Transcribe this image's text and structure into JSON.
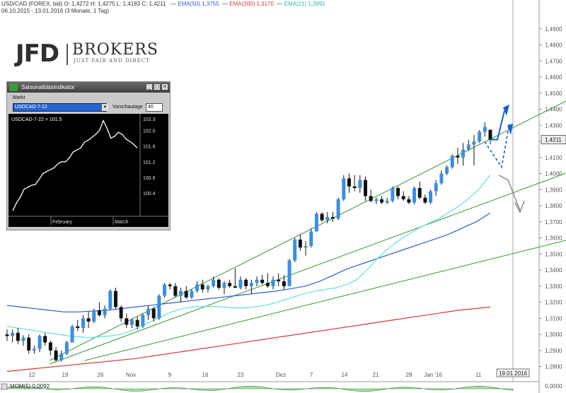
{
  "header": {
    "title_line": "USD/CAD (FOREX, bid)  O: 1,4272  H: 1,4275  L: 1,4183  C: 1,4211",
    "ema50": "EMA(50)  1,3755",
    "ema200": "EMA(200)  1,3170",
    "ema21": "EMA(21)  1,3992",
    "range_line": "06.10.2015 - 13.01.2016 (3 Monate, 1 Tag)"
  },
  "logo": {
    "jfd": "JFD",
    "brokers": "BROKERS",
    "tagline": "JUST FAIR AND DIRECT"
  },
  "colors": {
    "up_candle": "#3a8ee6",
    "down_candle": "#111111",
    "ema50": "#2a5bd7",
    "ema200": "#d43a3a",
    "ema21": "#5fe0e0",
    "trend": "#2e9a2e",
    "arrow": "#1560d8"
  },
  "current_price": "1,4211",
  "date_marker": "19.01.2016",
  "momentum": {
    "label": "MOM(5)  0,0092",
    "value_label": "0,0000"
  },
  "chart_data": {
    "type": "candlestick",
    "ylim": [
      1.275,
      1.5
    ],
    "y_ticks": [
      "1,2800",
      "1,2900",
      "1,3000",
      "1,3100",
      "1,3200",
      "1,3300",
      "1,3400",
      "1,3500",
      "1,3600",
      "1,3700",
      "1,3800",
      "1,3900",
      "1,4000",
      "1,4100",
      "1,4200",
      "1,4300",
      "1,4400",
      "1,4500",
      "1,4600",
      "1,4700",
      "1,4800",
      "1,4900"
    ],
    "x_tick_labels": [
      "12",
      "19",
      "26",
      "Nov",
      "9",
      "16",
      "23",
      "Dez",
      "7",
      "14",
      "21",
      "28",
      "Jan '16",
      "11"
    ],
    "candles": [
      [
        1.3,
        1.303,
        1.296,
        1.299
      ],
      [
        1.299,
        1.303,
        1.295,
        1.301
      ],
      [
        1.301,
        1.304,
        1.294,
        1.296
      ],
      [
        1.296,
        1.2995,
        1.293,
        1.298
      ],
      [
        1.298,
        1.3,
        1.288,
        1.29
      ],
      [
        1.29,
        1.293,
        1.288,
        1.291
      ],
      [
        1.291,
        1.3,
        1.289,
        1.299
      ],
      [
        1.299,
        1.301,
        1.293,
        1.295
      ],
      [
        1.295,
        1.296,
        1.287,
        1.29
      ],
      [
        1.29,
        1.292,
        1.283,
        1.284
      ],
      [
        1.284,
        1.29,
        1.283,
        1.288
      ],
      [
        1.288,
        1.296,
        1.287,
        1.295
      ],
      [
        1.295,
        1.306,
        1.295,
        1.305
      ],
      [
        1.305,
        1.309,
        1.302,
        1.304
      ],
      [
        1.304,
        1.312,
        1.301,
        1.31
      ],
      [
        1.31,
        1.314,
        1.304,
        1.308
      ],
      [
        1.308,
        1.316,
        1.307,
        1.315
      ],
      [
        1.315,
        1.32,
        1.311,
        1.312
      ],
      [
        1.312,
        1.318,
        1.31,
        1.316
      ],
      [
        1.316,
        1.328,
        1.315,
        1.327
      ],
      [
        1.327,
        1.329,
        1.316,
        1.317
      ],
      [
        1.317,
        1.318,
        1.308,
        1.31
      ],
      [
        1.31,
        1.313,
        1.304,
        1.306
      ],
      [
        1.306,
        1.31,
        1.304,
        1.309
      ],
      [
        1.309,
        1.311,
        1.303,
        1.305
      ],
      [
        1.305,
        1.313,
        1.304,
        1.312
      ],
      [
        1.312,
        1.318,
        1.309,
        1.316
      ],
      [
        1.316,
        1.317,
        1.308,
        1.31
      ],
      [
        1.31,
        1.325,
        1.309,
        1.324
      ],
      [
        1.324,
        1.332,
        1.323,
        1.331
      ],
      [
        1.331,
        1.332,
        1.328,
        1.33
      ],
      [
        1.33,
        1.332,
        1.323,
        1.324
      ],
      [
        1.324,
        1.329,
        1.32,
        1.327
      ],
      [
        1.327,
        1.33,
        1.322,
        1.323
      ],
      [
        1.323,
        1.328,
        1.322,
        1.327
      ],
      [
        1.327,
        1.333,
        1.326,
        1.331
      ],
      [
        1.331,
        1.334,
        1.326,
        1.328
      ],
      [
        1.328,
        1.331,
        1.326,
        1.33
      ],
      [
        1.33,
        1.336,
        1.329,
        1.334
      ],
      [
        1.334,
        1.335,
        1.328,
        1.329
      ],
      [
        1.329,
        1.333,
        1.325,
        1.332
      ],
      [
        1.332,
        1.334,
        1.329,
        1.33
      ],
      [
        1.33,
        1.341,
        1.329,
        1.329
      ],
      [
        1.329,
        1.336,
        1.328,
        1.334
      ],
      [
        1.334,
        1.335,
        1.328,
        1.33
      ],
      [
        1.33,
        1.334,
        1.325,
        1.332
      ],
      [
        1.332,
        1.336,
        1.33,
        1.334
      ],
      [
        1.334,
        1.337,
        1.331,
        1.332
      ],
      [
        1.332,
        1.338,
        1.329,
        1.33
      ],
      [
        1.33,
        1.336,
        1.328,
        1.334
      ],
      [
        1.334,
        1.338,
        1.33,
        1.333
      ],
      [
        1.333,
        1.337,
        1.328,
        1.33
      ],
      [
        1.33,
        1.347,
        1.33,
        1.346
      ],
      [
        1.346,
        1.36,
        1.345,
        1.359
      ],
      [
        1.359,
        1.362,
        1.352,
        1.354
      ],
      [
        1.354,
        1.358,
        1.349,
        1.355
      ],
      [
        1.355,
        1.366,
        1.354,
        1.364
      ],
      [
        1.364,
        1.376,
        1.364,
        1.375
      ],
      [
        1.375,
        1.376,
        1.37,
        1.371
      ],
      [
        1.371,
        1.376,
        1.369,
        1.373
      ],
      [
        1.373,
        1.376,
        1.37,
        1.372
      ],
      [
        1.372,
        1.385,
        1.371,
        1.384
      ],
      [
        1.384,
        1.399,
        1.383,
        1.397
      ],
      [
        1.397,
        1.4,
        1.388,
        1.392
      ],
      [
        1.392,
        1.399,
        1.389,
        1.391
      ],
      [
        1.391,
        1.399,
        1.388,
        1.396
      ],
      [
        1.396,
        1.398,
        1.383,
        1.386
      ],
      [
        1.386,
        1.39,
        1.382,
        1.383
      ],
      [
        1.383,
        1.385,
        1.381,
        1.384
      ],
      [
        1.384,
        1.386,
        1.381,
        1.382
      ],
      [
        1.382,
        1.385,
        1.381,
        1.383
      ],
      [
        1.383,
        1.392,
        1.382,
        1.391
      ],
      [
        1.391,
        1.392,
        1.384,
        1.386
      ],
      [
        1.386,
        1.389,
        1.383,
        1.384
      ],
      [
        1.384,
        1.386,
        1.381,
        1.382
      ],
      [
        1.382,
        1.392,
        1.381,
        1.391
      ],
      [
        1.391,
        1.395,
        1.384,
        1.385
      ],
      [
        1.385,
        1.387,
        1.381,
        1.382
      ],
      [
        1.382,
        1.39,
        1.381,
        1.389
      ],
      [
        1.389,
        1.396,
        1.386,
        1.394
      ],
      [
        1.394,
        1.402,
        1.393,
        1.4
      ],
      [
        1.4,
        1.405,
        1.399,
        1.404
      ],
      [
        1.404,
        1.412,
        1.403,
        1.411
      ],
      [
        1.411,
        1.416,
        1.406,
        1.41
      ],
      [
        1.41,
        1.419,
        1.405,
        1.415
      ],
      [
        1.415,
        1.421,
        1.414,
        1.418
      ],
      [
        1.418,
        1.424,
        1.405,
        1.42
      ],
      [
        1.42,
        1.427,
        1.419,
        1.426
      ],
      [
        1.426,
        1.432,
        1.423,
        1.429
      ],
      [
        1.4272,
        1.4275,
        1.4183,
        1.4211
      ]
    ],
    "ema21": [
      1.305,
      1.304,
      1.303,
      1.302,
      1.301,
      1.3,
      1.299,
      1.2985,
      1.298,
      1.2985,
      1.299,
      1.3,
      1.302,
      1.305,
      1.308,
      1.311,
      1.314,
      1.316,
      1.317,
      1.3175,
      1.3175,
      1.317,
      1.3165,
      1.3165,
      1.317,
      1.318,
      1.3195,
      1.3215,
      1.3235,
      1.3255,
      1.327,
      1.328,
      1.329,
      1.331,
      1.334,
      1.34,
      1.347,
      1.353,
      1.358,
      1.362,
      1.366,
      1.369,
      1.372,
      1.376,
      1.38,
      1.385,
      1.391,
      1.3992
    ],
    "ema50": [
      1.318,
      1.317,
      1.316,
      1.315,
      1.314,
      1.314,
      1.3145,
      1.315,
      1.316,
      1.317,
      1.318,
      1.319,
      1.32,
      1.321,
      1.322,
      1.323,
      1.324,
      1.325,
      1.326,
      1.327,
      1.3285,
      1.33,
      1.333,
      1.337,
      1.341,
      1.344,
      1.347,
      1.35,
      1.353,
      1.356,
      1.359,
      1.362,
      1.366,
      1.37,
      1.3755
    ],
    "ema200": [
      1.277,
      1.279,
      1.281,
      1.283,
      1.285,
      1.288,
      1.291,
      1.294,
      1.297,
      1.3,
      1.303,
      1.306,
      1.309,
      1.312,
      1.315,
      1.317
    ]
  },
  "indicator": {
    "title": "Saisonalitätsindikator",
    "markt_label": "Markt",
    "select_value": "USDCAD-7-22",
    "vorschau_label": "Vorschautage",
    "vorschau_value": "40",
    "series_label": "USDCAD-7-22 = 101.5",
    "y_ticks": [
      "102.3",
      "102.0",
      "101.6",
      "101.2",
      "100.8",
      "100.4"
    ],
    "x_labels": [
      "February",
      "March"
    ],
    "values": [
      99.95,
      100.15,
      100.3,
      100.5,
      100.55,
      100.6,
      100.62,
      100.75,
      100.9,
      100.95,
      101.0,
      101.05,
      101.15,
      101.2,
      101.2,
      101.3,
      101.45,
      101.5,
      101.55,
      101.7,
      101.75,
      101.82,
      101.9,
      102.0,
      102.25,
      102.05,
      101.8,
      101.85,
      101.95,
      101.9,
      101.78,
      101.72,
      101.65,
      101.55
    ]
  }
}
